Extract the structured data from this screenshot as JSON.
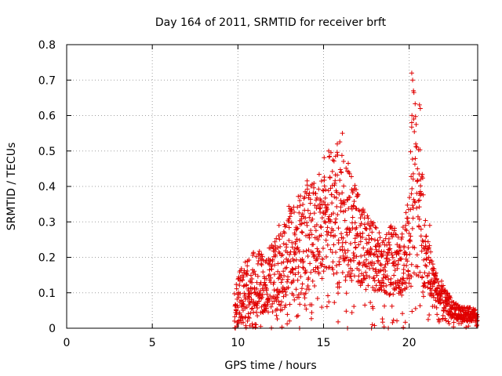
{
  "chart_data": {
    "type": "scatter",
    "title": "Day 164 of 2011, SRMTID for receiver brft",
    "xlabel": "GPS time / hours",
    "ylabel": "SRMTID / TECUs",
    "xlim": [
      0,
      24
    ],
    "ylim": [
      0,
      0.8
    ],
    "xticks": [
      0,
      5,
      10,
      15,
      20
    ],
    "xtick_labels": [
      "0",
      "5",
      "10",
      "15",
      "20"
    ],
    "yticks": [
      0,
      0.1,
      0.2,
      0.3,
      0.4,
      0.5,
      0.6,
      0.7,
      0.8
    ],
    "ytick_labels": [
      "0",
      "0.1",
      "0.2",
      "0.3",
      "0.4",
      "0.5",
      "0.6",
      "0.7",
      "0.8"
    ],
    "grid": true,
    "marker": "+",
    "color": "#e00000",
    "envelope": [
      [
        9.8,
        0.01,
        0.1
      ],
      [
        10.0,
        0.01,
        0.15
      ],
      [
        10.5,
        0.02,
        0.2
      ],
      [
        11.0,
        0.04,
        0.22
      ],
      [
        11.5,
        0.04,
        0.22
      ],
      [
        12.0,
        0.05,
        0.24
      ],
      [
        12.5,
        0.05,
        0.28
      ],
      [
        13.0,
        0.06,
        0.35
      ],
      [
        13.5,
        0.08,
        0.38
      ],
      [
        14.0,
        0.1,
        0.42
      ],
      [
        14.5,
        0.12,
        0.42
      ],
      [
        15.0,
        0.14,
        0.48
      ],
      [
        15.5,
        0.15,
        0.5
      ],
      [
        16.0,
        0.15,
        0.53
      ],
      [
        16.5,
        0.14,
        0.48
      ],
      [
        17.0,
        0.12,
        0.38
      ],
      [
        17.5,
        0.12,
        0.32
      ],
      [
        18.0,
        0.1,
        0.3
      ],
      [
        18.5,
        0.1,
        0.26
      ],
      [
        19.0,
        0.09,
        0.3
      ],
      [
        19.5,
        0.1,
        0.24
      ],
      [
        20.0,
        0.12,
        0.4
      ],
      [
        20.2,
        0.14,
        0.72
      ],
      [
        20.5,
        0.15,
        0.6
      ],
      [
        20.8,
        0.12,
        0.45
      ],
      [
        21.0,
        0.1,
        0.28
      ],
      [
        21.5,
        0.08,
        0.16
      ],
      [
        22.0,
        0.05,
        0.13
      ],
      [
        22.5,
        0.03,
        0.08
      ],
      [
        23.0,
        0.02,
        0.06
      ],
      [
        23.5,
        0.02,
        0.06
      ],
      [
        24.0,
        0.02,
        0.05
      ]
    ],
    "annotated_points": [
      [
        9.85,
        0.0
      ],
      [
        13.6,
        0.0
      ],
      [
        16.4,
        0.0
      ],
      [
        17.8,
        0.0
      ],
      [
        20.15,
        0.72
      ],
      [
        20.2,
        0.7
      ],
      [
        20.25,
        0.67
      ],
      [
        20.15,
        0.58
      ],
      [
        20.6,
        0.63
      ],
      [
        20.65,
        0.62
      ],
      [
        16.1,
        0.55
      ],
      [
        15.8,
        0.52
      ],
      [
        15.3,
        0.5
      ],
      [
        12.4,
        0.29
      ],
      [
        21.2,
        0.29
      ]
    ],
    "point_count": 1500
  }
}
